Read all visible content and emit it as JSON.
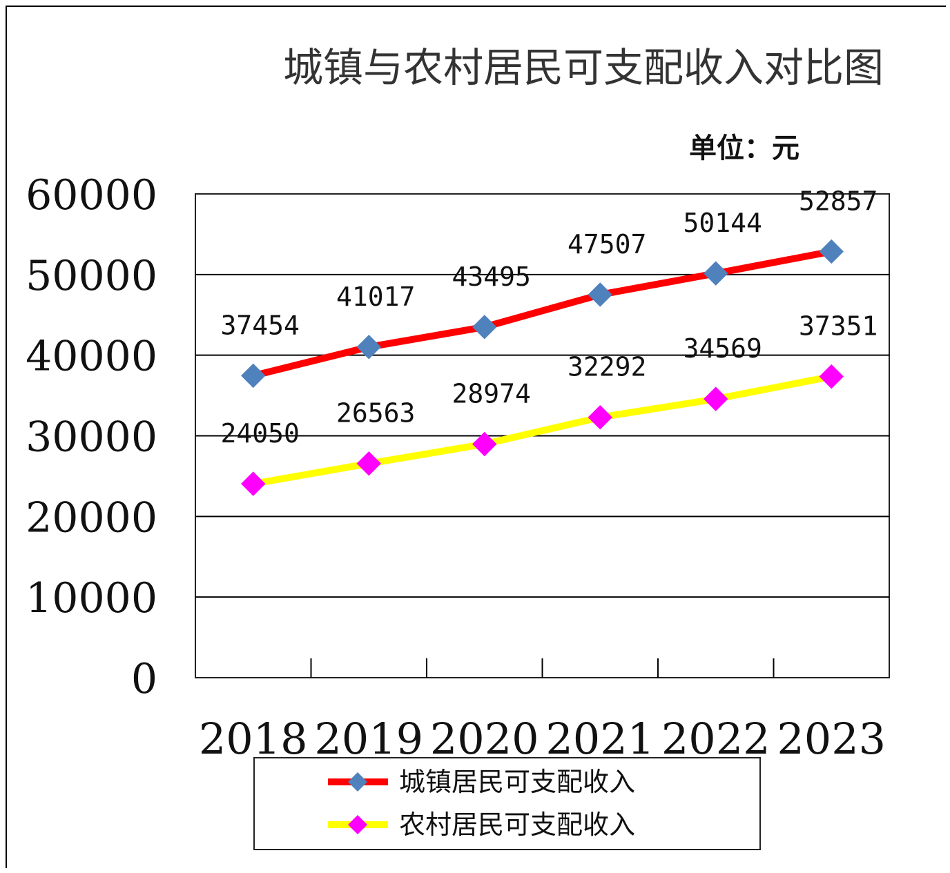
{
  "chart_data": {
    "type": "line",
    "title": "城镇与农村居民可支配收入对比图",
    "unit_label": "单位：元",
    "categories": [
      "2018",
      "2019",
      "2020",
      "2021",
      "2022",
      "2023"
    ],
    "ylim": [
      0,
      60000
    ],
    "yticks": [
      "60000",
      "50000",
      "40000",
      "30000",
      "20000",
      "10000",
      "0"
    ],
    "grid": true,
    "legend_position": "bottom",
    "series": [
      {
        "name": "城镇居民可支配收入",
        "values": [
          37454,
          41017,
          43495,
          47507,
          50144,
          52857
        ],
        "labels": [
          "37454",
          "41017",
          "43495",
          "47507",
          "50144",
          "52857"
        ],
        "line_color": "#ff0000",
        "marker_color": "#4f81bd",
        "marker": "diamond"
      },
      {
        "name": "农村居民可支配收入",
        "values": [
          24050,
          26563,
          28974,
          32292,
          34569,
          37351
        ],
        "labels": [
          "24050",
          "26563",
          "28974",
          "32292",
          "34569",
          "37351"
        ],
        "line_color": "#ffff00",
        "marker_color": "#ff00ff",
        "marker": "diamond"
      }
    ]
  }
}
